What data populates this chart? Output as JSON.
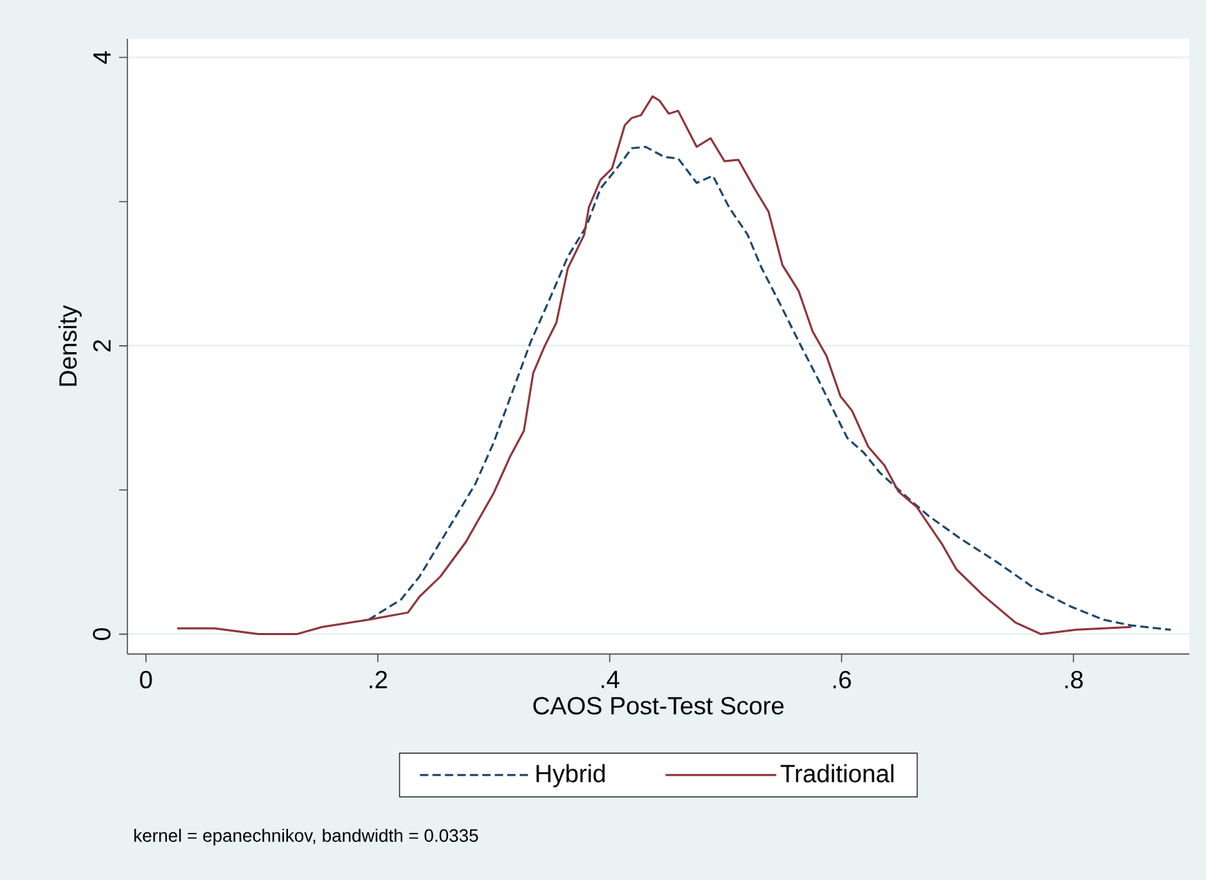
{
  "chart_data": {
    "type": "line",
    "xlabel": "CAOS Post-Test Score",
    "ylabel": "Density",
    "annotations": [
      "kernel = epanechnikov, bandwidth = 0.0335"
    ],
    "xlim": [
      -0.016,
      0.9
    ],
    "ylim": [
      -0.138,
      4.13
    ],
    "xticks": [
      0,
      {
        "value": 0.2,
        "label": ".2"
      },
      {
        "value": 0.4,
        "label": ".4"
      },
      {
        "value": 0.6,
        "label": ".6"
      },
      {
        "value": 0.8,
        "label": ".8"
      }
    ],
    "yticks": [
      0,
      {
        "value": 1,
        "label": null
      },
      2,
      {
        "value": 3,
        "label": null
      },
      4
    ],
    "grid": "y",
    "legend": "bottom",
    "series": [
      {
        "name": "Hybrid",
        "color": "#1a476f",
        "line_style": "dashed",
        "x": [
          0.192,
          0.22,
          0.236,
          0.26,
          0.284,
          0.3,
          0.316,
          0.332,
          0.348,
          0.364,
          0.38,
          0.392,
          0.408,
          0.419,
          0.431,
          0.447,
          0.459,
          0.475,
          0.489,
          0.503,
          0.519,
          0.531,
          0.547,
          0.563,
          0.579,
          0.595,
          0.605,
          0.619,
          0.633,
          0.655,
          0.675,
          0.703,
          0.734,
          0.766,
          0.798,
          0.826,
          0.85,
          0.884
        ],
        "values": [
          0.1,
          0.24,
          0.4,
          0.72,
          1.04,
          1.33,
          1.68,
          2.03,
          2.32,
          2.62,
          2.83,
          3.09,
          3.25,
          3.37,
          3.38,
          3.31,
          3.3,
          3.13,
          3.18,
          2.96,
          2.77,
          2.54,
          2.29,
          2.03,
          1.78,
          1.52,
          1.36,
          1.26,
          1.12,
          0.96,
          0.82,
          0.66,
          0.5,
          0.32,
          0.19,
          0.1,
          0.06,
          0.03
        ]
      },
      {
        "name": "Traditional",
        "color": "#90353b",
        "line_style": "solid",
        "x": [
          0.027,
          0.059,
          0.097,
          0.13,
          0.152,
          0.192,
          0.226,
          0.236,
          0.254,
          0.276,
          0.3,
          0.314,
          0.326,
          0.334,
          0.344,
          0.354,
          0.364,
          0.378,
          0.382,
          0.392,
          0.402,
          0.413,
          0.419,
          0.427,
          0.437,
          0.443,
          0.451,
          0.459,
          0.475,
          0.487,
          0.499,
          0.511,
          0.525,
          0.537,
          0.549,
          0.563,
          0.575,
          0.587,
          0.599,
          0.609,
          0.623,
          0.637,
          0.649,
          0.665,
          0.687,
          0.699,
          0.722,
          0.75,
          0.772,
          0.802,
          0.85
        ],
        "values": [
          0.04,
          0.04,
          0,
          0,
          0.05,
          0.1,
          0.15,
          0.26,
          0.4,
          0.64,
          0.98,
          1.23,
          1.41,
          1.81,
          2.0,
          2.16,
          2.54,
          2.77,
          2.96,
          3.15,
          3.23,
          3.53,
          3.58,
          3.6,
          3.73,
          3.7,
          3.61,
          3.63,
          3.38,
          3.44,
          3.28,
          3.29,
          3.09,
          2.93,
          2.56,
          2.38,
          2.1,
          1.93,
          1.65,
          1.55,
          1.3,
          1.17,
          0.99,
          0.88,
          0.62,
          0.45,
          0.27,
          0.08,
          0,
          0.03,
          0.05
        ]
      }
    ]
  }
}
